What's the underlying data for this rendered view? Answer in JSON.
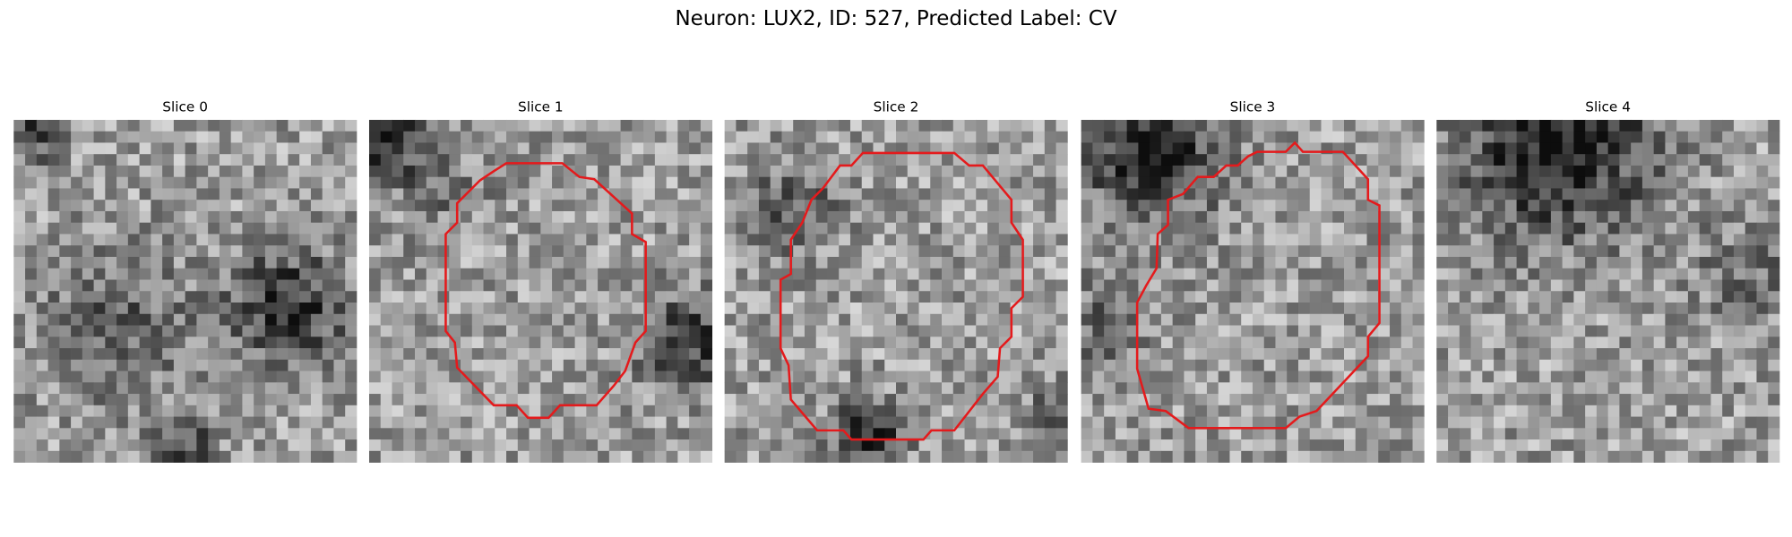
{
  "title": "Neuron: LUX2, ID: 527, Predicted Label: CV",
  "panels": [
    {
      "title": "Slice 0"
    },
    {
      "title": "Slice 1"
    },
    {
      "title": "Slice 2"
    },
    {
      "title": "Slice 3"
    },
    {
      "title": "Slice 4"
    }
  ]
}
